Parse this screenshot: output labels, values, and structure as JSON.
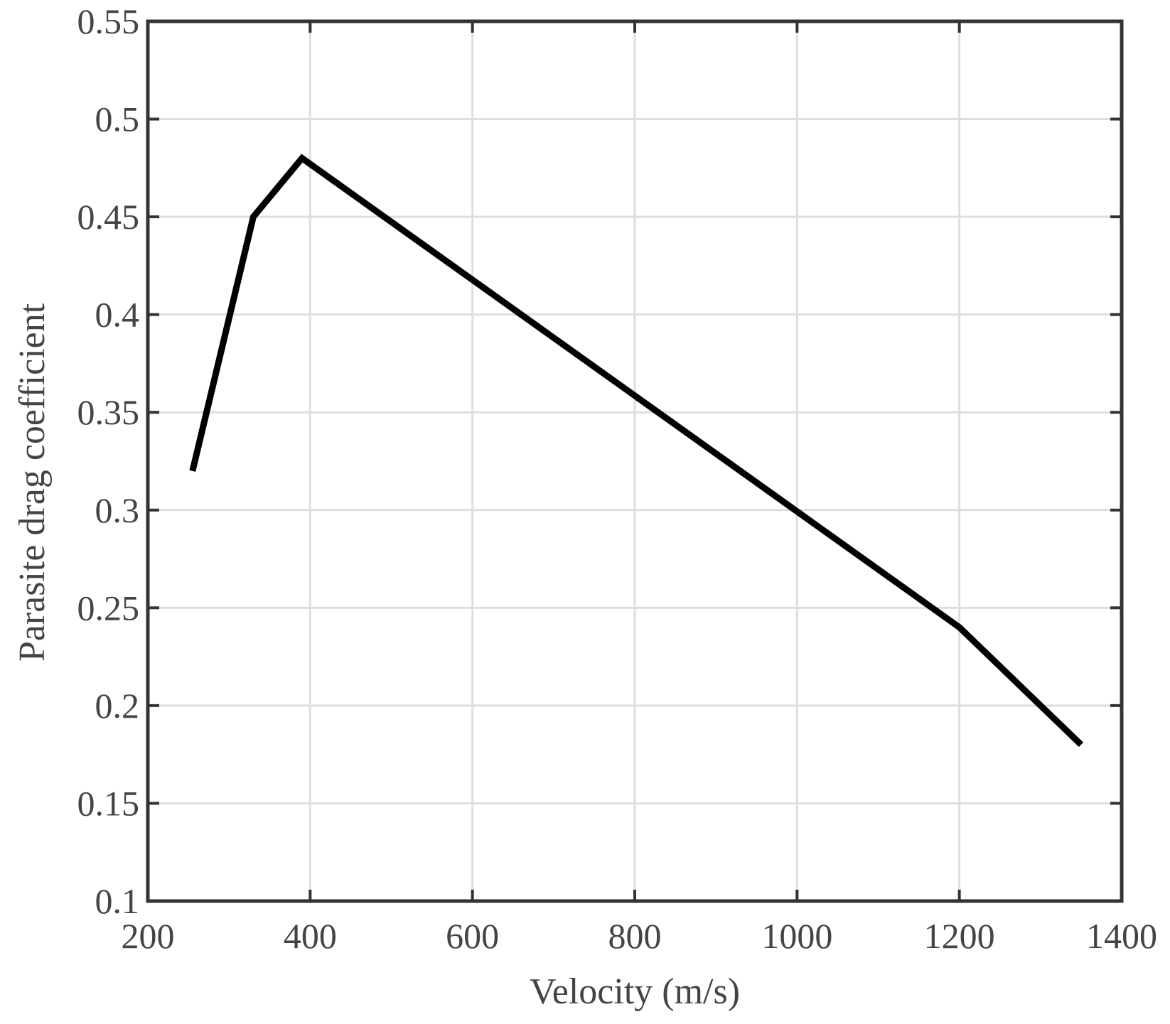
{
  "chart_data": {
    "type": "line",
    "title": "",
    "xlabel": "Velocity (m/s)",
    "ylabel": "Parasite drag coefficient",
    "xlim": [
      200,
      1400
    ],
    "ylim": [
      0.1,
      0.55
    ],
    "x_ticks": [
      200,
      400,
      600,
      800,
      1000,
      1200,
      1400
    ],
    "x_tick_labels": [
      "200",
      "400",
      "600",
      "800",
      "1000",
      "1200",
      "1400"
    ],
    "y_ticks": [
      0.1,
      0.15,
      0.2,
      0.25,
      0.3,
      0.35,
      0.4,
      0.45,
      0.5,
      0.55
    ],
    "y_tick_labels": [
      "0.1",
      "0.15",
      "0.2",
      "0.25",
      "0.3",
      "0.35",
      "0.4",
      "0.45",
      "0.5",
      "0.55"
    ],
    "grid": true,
    "legend": "none",
    "series": [
      {
        "color": "#000000",
        "x": [
          255,
          330,
          390,
          1200,
          1350
        ],
        "y": [
          0.32,
          0.45,
          0.48,
          0.24,
          0.18
        ]
      }
    ]
  }
}
